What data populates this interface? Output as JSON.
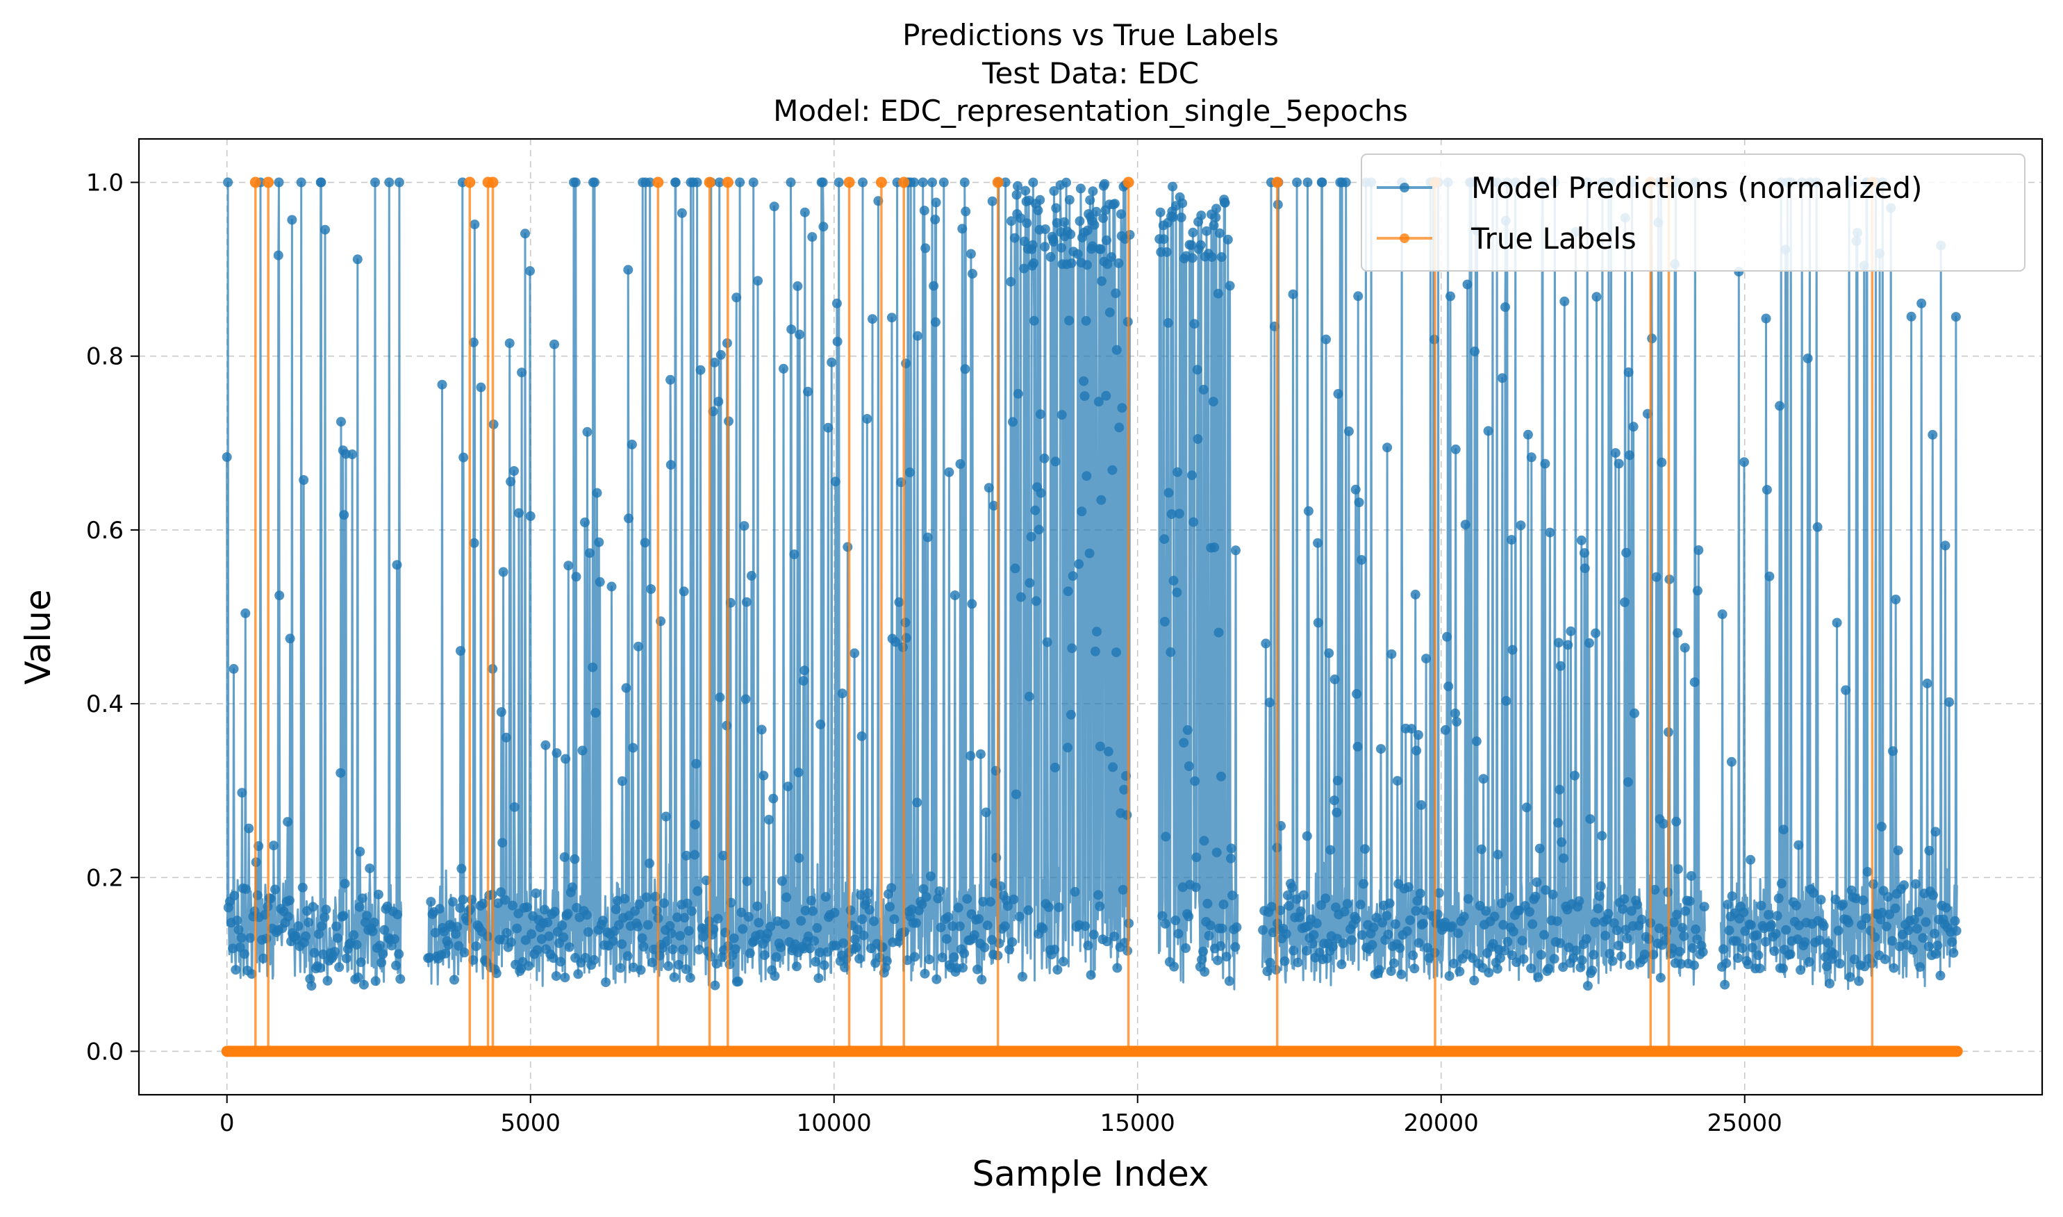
{
  "chart_data": {
    "type": "line",
    "title_lines": [
      "Predictions vs True Labels",
      "Test Data: EDC",
      "Model: EDC_representation_single_5epochs"
    ],
    "xlabel": "Sample Index",
    "ylabel": "Value",
    "xlim": [
      -1450,
      29900
    ],
    "ylim": [
      -0.05,
      1.05
    ],
    "x_ticks": [
      0,
      5000,
      10000,
      15000,
      20000,
      25000
    ],
    "x_tick_labels": [
      "0",
      "5000",
      "10000",
      "15000",
      "20000",
      "25000"
    ],
    "y_ticks": [
      0.0,
      0.2,
      0.4,
      0.6,
      0.8,
      1.0
    ],
    "y_tick_labels": [
      "0.0",
      "0.2",
      "0.4",
      "0.6",
      "0.8",
      "1.0"
    ],
    "grid": true,
    "legend_placement": "top-right",
    "n_samples": 28500,
    "series": [
      {
        "name": "Model Predictions (normalized)",
        "color": "#1f77b4",
        "marker": "o",
        "baseline_range": [
          0.05,
          0.2
        ],
        "gaps": [
          [
            2880,
            3300
          ],
          [
            14880,
            15350
          ],
          [
            16650,
            17050
          ],
          [
            24350,
            24600
          ]
        ],
        "dense_one_region": [
          12900,
          16500
        ]
      },
      {
        "name": "True Labels",
        "color": "#ff7f0e",
        "marker": "o",
        "default_value": 0.0,
        "positive_indices": [
          470,
          680,
          4000,
          4300,
          4380,
          7100,
          7950,
          8250,
          10250,
          10780,
          11150,
          12700,
          14850,
          17300,
          19900,
          23450,
          23750,
          27100
        ]
      }
    ]
  }
}
